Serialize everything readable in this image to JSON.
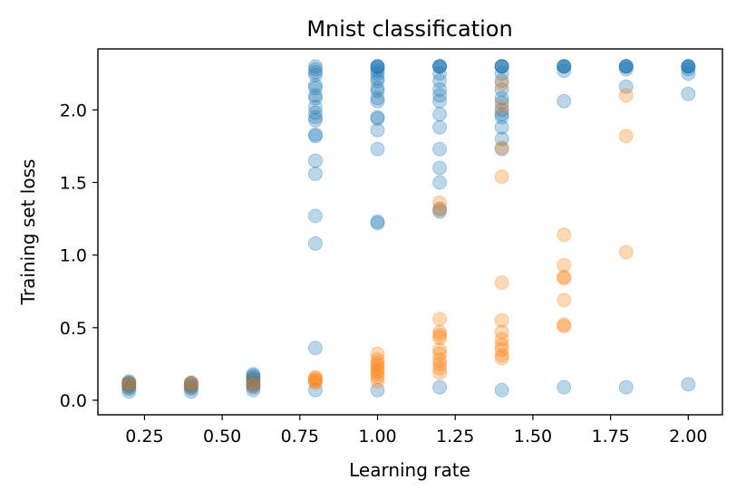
{
  "chart_data": {
    "type": "scatter",
    "title": "Mnist classification",
    "xlabel": "Learning rate",
    "ylabel": "Training set loss",
    "xlim": [
      0.1,
      2.11
    ],
    "ylim": [
      -0.1,
      2.42
    ],
    "x_ticks": [
      0.25,
      0.5,
      0.75,
      1.0,
      1.25,
      1.5,
      1.75,
      2.0
    ],
    "x_tick_labels": [
      "0.25",
      "0.50",
      "0.75",
      "1.00",
      "1.25",
      "1.50",
      "1.75",
      "2.00"
    ],
    "y_ticks": [
      0.0,
      0.5,
      1.0,
      1.5,
      2.0
    ],
    "y_tick_labels": [
      "0.0",
      "0.5",
      "1.0",
      "1.5",
      "2.0"
    ],
    "grid": false,
    "series": [
      {
        "name": "series-blue",
        "color": "#1f77b4",
        "alpha": 0.3,
        "points": [
          [
            0.2,
            0.06
          ],
          [
            0.2,
            0.08
          ],
          [
            0.2,
            0.09
          ],
          [
            0.2,
            0.1
          ],
          [
            0.2,
            0.1
          ],
          [
            0.2,
            0.11
          ],
          [
            0.2,
            0.11
          ],
          [
            0.2,
            0.12
          ],
          [
            0.2,
            0.12
          ],
          [
            0.2,
            0.13
          ],
          [
            0.4,
            0.06
          ],
          [
            0.4,
            0.08
          ],
          [
            0.4,
            0.09
          ],
          [
            0.4,
            0.1
          ],
          [
            0.4,
            0.1
          ],
          [
            0.4,
            0.11
          ],
          [
            0.4,
            0.12
          ],
          [
            0.4,
            0.12
          ],
          [
            0.6,
            0.07
          ],
          [
            0.6,
            0.09
          ],
          [
            0.6,
            0.1
          ],
          [
            0.6,
            0.11
          ],
          [
            0.6,
            0.12
          ],
          [
            0.6,
            0.13
          ],
          [
            0.6,
            0.14
          ],
          [
            0.6,
            0.15
          ],
          [
            0.6,
            0.16
          ],
          [
            0.6,
            0.17
          ],
          [
            0.6,
            0.18
          ],
          [
            0.8,
            0.07
          ],
          [
            0.8,
            0.36
          ],
          [
            0.8,
            1.08
          ],
          [
            0.8,
            1.27
          ],
          [
            0.8,
            1.56
          ],
          [
            0.8,
            1.65
          ],
          [
            0.8,
            1.82
          ],
          [
            0.8,
            1.83
          ],
          [
            0.8,
            1.93
          ],
          [
            0.8,
            1.95
          ],
          [
            0.8,
            1.98
          ],
          [
            0.8,
            2.02
          ],
          [
            0.8,
            2.08
          ],
          [
            0.8,
            2.1
          ],
          [
            0.8,
            2.15
          ],
          [
            0.8,
            2.17
          ],
          [
            0.8,
            2.24
          ],
          [
            0.8,
            2.26
          ],
          [
            0.8,
            2.28
          ],
          [
            0.8,
            2.3
          ],
          [
            1.0,
            0.07
          ],
          [
            1.0,
            1.22
          ],
          [
            1.0,
            1.23
          ],
          [
            1.0,
            1.73
          ],
          [
            1.0,
            1.86
          ],
          [
            1.0,
            1.94
          ],
          [
            1.0,
            1.95
          ],
          [
            1.0,
            2.06
          ],
          [
            1.0,
            2.08
          ],
          [
            1.0,
            2.13
          ],
          [
            1.0,
            2.15
          ],
          [
            1.0,
            2.2
          ],
          [
            1.0,
            2.22
          ],
          [
            1.0,
            2.25
          ],
          [
            1.0,
            2.27
          ],
          [
            1.0,
            2.29
          ],
          [
            1.0,
            2.3
          ],
          [
            1.0,
            2.3
          ],
          [
            1.0,
            2.3
          ],
          [
            1.2,
            0.09
          ],
          [
            1.2,
            1.3
          ],
          [
            1.2,
            1.32
          ],
          [
            1.2,
            1.5
          ],
          [
            1.2,
            1.6
          ],
          [
            1.2,
            1.73
          ],
          [
            1.2,
            1.88
          ],
          [
            1.2,
            1.97
          ],
          [
            1.2,
            2.06
          ],
          [
            1.2,
            2.1
          ],
          [
            1.2,
            2.14
          ],
          [
            1.2,
            2.2
          ],
          [
            1.2,
            2.25
          ],
          [
            1.2,
            2.3
          ],
          [
            1.2,
            2.3
          ],
          [
            1.2,
            2.3
          ],
          [
            1.2,
            2.3
          ],
          [
            1.4,
            0.07
          ],
          [
            1.4,
            1.73
          ],
          [
            1.4,
            1.8
          ],
          [
            1.4,
            1.88
          ],
          [
            1.4,
            1.95
          ],
          [
            1.4,
            1.97
          ],
          [
            1.4,
            2.0
          ],
          [
            1.4,
            2.05
          ],
          [
            1.4,
            2.08
          ],
          [
            1.4,
            2.14
          ],
          [
            1.4,
            2.2
          ],
          [
            1.4,
            2.25
          ],
          [
            1.4,
            2.3
          ],
          [
            1.4,
            2.3
          ],
          [
            1.4,
            2.3
          ],
          [
            1.4,
            2.3
          ],
          [
            1.6,
            0.09
          ],
          [
            1.6,
            2.06
          ],
          [
            1.6,
            2.27
          ],
          [
            1.6,
            2.3
          ],
          [
            1.6,
            2.3
          ],
          [
            1.6,
            2.3
          ],
          [
            1.6,
            2.3
          ],
          [
            1.8,
            0.09
          ],
          [
            1.8,
            2.16
          ],
          [
            1.8,
            2.28
          ],
          [
            1.8,
            2.3
          ],
          [
            1.8,
            2.3
          ],
          [
            1.8,
            2.3
          ],
          [
            1.8,
            2.3
          ],
          [
            2.0,
            0.11
          ],
          [
            2.0,
            2.11
          ],
          [
            2.0,
            2.25
          ],
          [
            2.0,
            2.28
          ],
          [
            2.0,
            2.3
          ],
          [
            2.0,
            2.3
          ],
          [
            2.0,
            2.3
          ],
          [
            2.0,
            2.3
          ]
        ]
      },
      {
        "name": "series-orange",
        "color": "#ff7f0e",
        "alpha": 0.3,
        "points": [
          [
            0.2,
            0.1
          ],
          [
            0.2,
            0.12
          ],
          [
            0.4,
            0.1
          ],
          [
            0.4,
            0.12
          ],
          [
            0.6,
            0.1
          ],
          [
            0.6,
            0.13
          ],
          [
            0.8,
            0.12
          ],
          [
            0.8,
            0.13
          ],
          [
            0.8,
            0.14
          ],
          [
            0.8,
            0.15
          ],
          [
            0.8,
            0.16
          ],
          [
            1.0,
            0.13
          ],
          [
            1.0,
            0.16
          ],
          [
            1.0,
            0.18
          ],
          [
            1.0,
            0.2
          ],
          [
            1.0,
            0.22
          ],
          [
            1.0,
            0.24
          ],
          [
            1.0,
            0.26
          ],
          [
            1.0,
            0.28
          ],
          [
            1.0,
            0.32
          ],
          [
            1.2,
            0.19
          ],
          [
            1.2,
            0.22
          ],
          [
            1.2,
            0.25
          ],
          [
            1.2,
            0.28
          ],
          [
            1.2,
            0.32
          ],
          [
            1.2,
            0.35
          ],
          [
            1.2,
            0.43
          ],
          [
            1.2,
            0.45
          ],
          [
            1.2,
            0.47
          ],
          [
            1.2,
            0.56
          ],
          [
            1.2,
            1.31
          ],
          [
            1.2,
            1.36
          ],
          [
            1.4,
            0.29
          ],
          [
            1.4,
            0.31
          ],
          [
            1.4,
            0.35
          ],
          [
            1.4,
            0.38
          ],
          [
            1.4,
            0.42
          ],
          [
            1.4,
            0.47
          ],
          [
            1.4,
            0.55
          ],
          [
            1.4,
            0.81
          ],
          [
            1.4,
            1.54
          ],
          [
            1.4,
            1.74
          ],
          [
            1.4,
            2.02
          ],
          [
            1.4,
            2.18
          ],
          [
            1.6,
            0.51
          ],
          [
            1.6,
            0.52
          ],
          [
            1.6,
            0.69
          ],
          [
            1.6,
            0.84
          ],
          [
            1.6,
            0.85
          ],
          [
            1.6,
            0.93
          ],
          [
            1.6,
            1.14
          ],
          [
            1.8,
            1.02
          ],
          [
            1.8,
            1.82
          ],
          [
            1.8,
            2.1
          ]
        ]
      }
    ]
  }
}
